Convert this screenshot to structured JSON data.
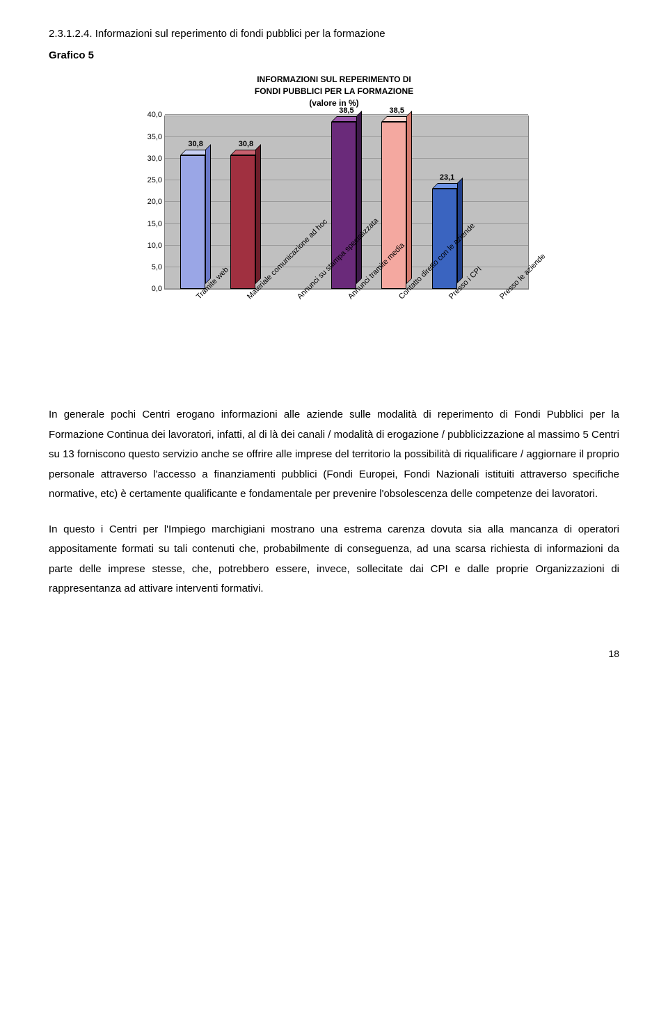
{
  "section_number": "2.3.1.2.4. Informazioni sul reperimento di fondi pubblici per la formazione",
  "grafico_label": "Grafico 5",
  "chart": {
    "type": "bar",
    "title_line1": "INFORMAZIONI SUL REPERIMENTO DI",
    "title_line2": "FONDI PUBBLICI PER LA FORMAZIONE",
    "title_line3": "(valore in %)",
    "title_fontsize": 12,
    "ylim_max": 40.0,
    "ytick_step": 5.0,
    "yticks": [
      "0,0",
      "5,0",
      "10,0",
      "15,0",
      "20,0",
      "25,0",
      "30,0",
      "35,0",
      "40,0"
    ],
    "background_color": "#c0c0c0",
    "grid_color": "#9a9a9a",
    "bar_border": "#000000",
    "categories": [
      {
        "label": "Tramite web",
        "value": 30.8,
        "display": "30,8",
        "face": "#9aa6e6",
        "top": "#c8d0f4",
        "side": "#6a78c8"
      },
      {
        "label": "Materiale comunicazione ad hoc",
        "value": 30.8,
        "display": "30,8",
        "face": "#a03040",
        "top": "#c8606e",
        "side": "#6e1e2a"
      },
      {
        "label": "Annunci su stampa specializzata",
        "value": 0.0,
        "display": "",
        "face": "#f2e498",
        "top": "#fbf4c8",
        "side": "#cab45a"
      },
      {
        "label": "Annunci tramite media",
        "value": 38.5,
        "display": "38,5",
        "face": "#6a2a7a",
        "top": "#9a56aa",
        "side": "#3e1a4a"
      },
      {
        "label": "Contatto diretto con le aziende",
        "value": 38.5,
        "display": "38,5",
        "face": "#f4a8a0",
        "top": "#fcd4ce",
        "side": "#d47a6e"
      },
      {
        "label": "Presso i CPI",
        "value": 23.1,
        "display": "23,1",
        "face": "#3a64c0",
        "top": "#6e94e6",
        "side": "#203e88"
      },
      {
        "label": "Presso le aziende",
        "value": 0.0,
        "display": "",
        "face": "#d0d0d0",
        "top": "#e8e8e8",
        "side": "#a0a0a0"
      }
    ]
  },
  "para1": "In generale pochi Centri erogano informazioni alle aziende sulle modalità di reperimento di Fondi Pubblici per la Formazione Continua dei lavoratori, infatti, al di là dei canali / modalità di erogazione / pubblicizzazione al massimo 5 Centri su 13 forniscono questo servizio anche se offrire alle imprese del territorio la possibilità di riqualificare / aggiornare il proprio personale attraverso l'accesso a finanziamenti pubblici (Fondi Europei, Fondi Nazionali istituiti attraverso specifiche normative, etc) è certamente qualificante e fondamentale per prevenire l'obsolescenza delle competenze dei lavoratori.",
  "para2": "In questo i Centri per l'Impiego marchigiani mostrano una estrema carenza dovuta sia alla mancanza di operatori appositamente formati su tali contenuti che, probabilmente di conseguenza, ad una scarsa richiesta di informazioni da parte delle imprese stesse, che, potrebbero essere, invece, sollecitate dai CPI e dalle proprie Organizzazioni di rappresentanza ad attivare interventi formativi.",
  "page_number": "18"
}
